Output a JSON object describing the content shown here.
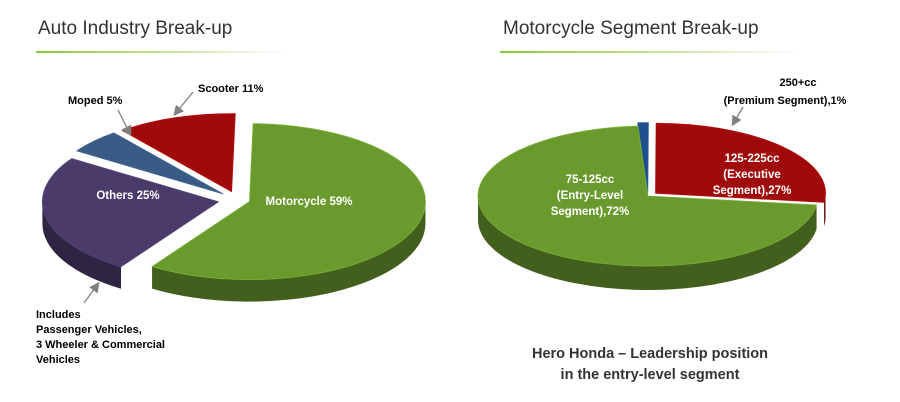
{
  "panels": {
    "left_title": "Auto Industry Break-up",
    "right_title": "Motorcycle Segment Break-up"
  },
  "footer": {
    "line1": "Hero Honda – Leadership position",
    "line2": "in the entry-level segment"
  },
  "colors": {
    "motorcycle": "#6a9a2e",
    "others": "#4a3b6b",
    "moped": "#3a5b85",
    "scooter": "#a00a0a",
    "premium": "#1f4f8c",
    "executive": "#a00a0a",
    "entry": "#6a9a2e",
    "title_rule": "#8dc63f"
  },
  "chart_data": [
    {
      "type": "pie",
      "title": "Auto Industry Break-up",
      "slices": [
        {
          "name": "Motorcycle",
          "value": 59,
          "label": "Motorcycle 59%"
        },
        {
          "name": "Others",
          "value": 25,
          "label": "Others 25%"
        },
        {
          "name": "Moped",
          "value": 5,
          "label": "Moped 5%"
        },
        {
          "name": "Scooter",
          "value": 11,
          "label": "Scooter 11%"
        }
      ],
      "annotation": [
        "Includes",
        "Passenger Vehicles,",
        "3 Wheeler & Commercial",
        "Vehicles"
      ]
    },
    {
      "type": "pie",
      "title": "Motorcycle Segment Break-up",
      "slices": [
        {
          "name": "250+cc (Premium Segment)",
          "value": 1,
          "label_lines": [
            "250+cc",
            "(Premium Segment),1%"
          ]
        },
        {
          "name": "125-225cc (Executive Segment)",
          "value": 27,
          "label_lines": [
            "125-225cc",
            "(Executive",
            "Segment),27%"
          ]
        },
        {
          "name": "75-125cc (Entry-Level Segment)",
          "value": 72,
          "label_lines": [
            "75-125cc",
            "(Entry-Level",
            "Segment),72%"
          ]
        }
      ]
    }
  ]
}
